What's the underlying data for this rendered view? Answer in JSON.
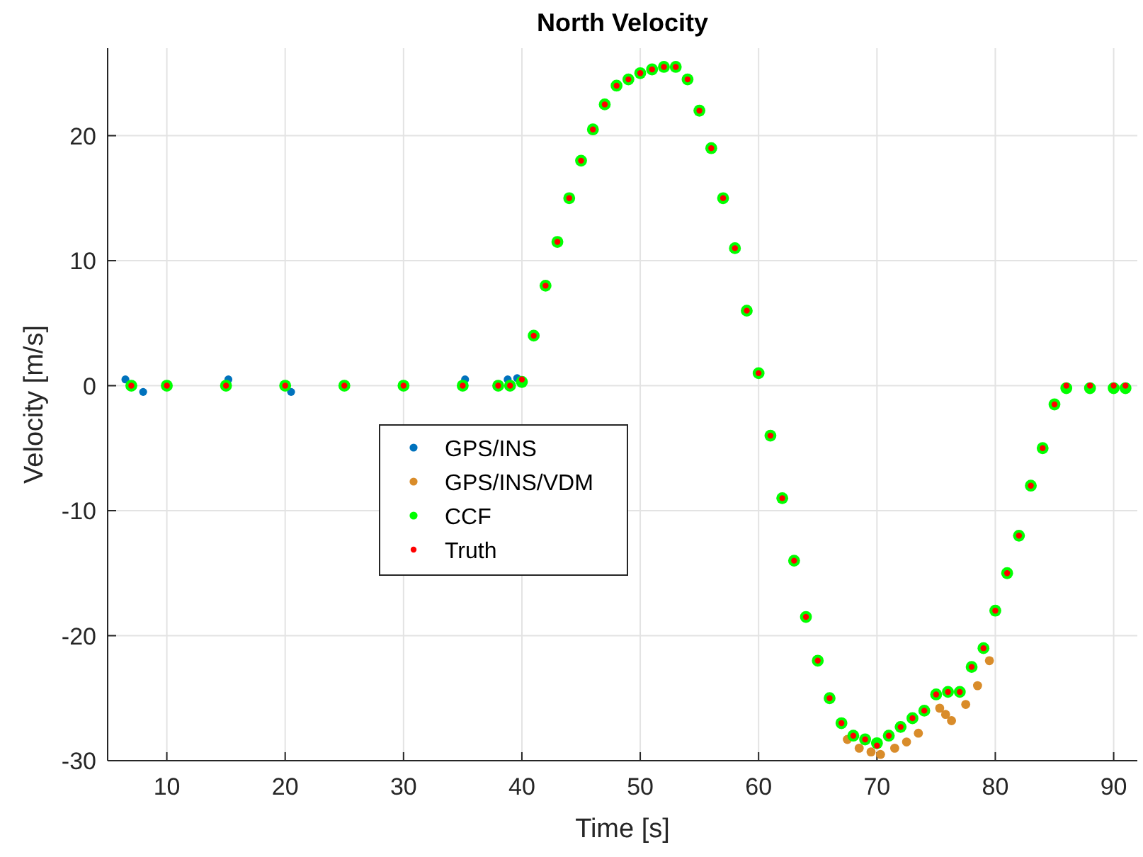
{
  "chart_data": {
    "type": "scatter",
    "title": "North Velocity",
    "xlabel": "Time [s]",
    "ylabel": "Velocity [m/s]",
    "x": [
      7,
      10,
      15,
      20,
      25,
      30,
      35,
      38,
      39,
      40,
      41,
      42,
      43,
      44,
      45,
      46,
      47,
      48,
      49,
      50,
      51,
      52,
      53,
      54,
      55,
      56,
      57,
      58,
      59,
      60,
      61,
      62,
      63,
      64,
      65,
      66,
      67,
      68,
      69,
      70,
      71,
      72,
      73,
      74,
      75,
      76,
      77,
      78,
      79,
      80,
      81,
      82,
      83,
      84,
      85,
      86,
      88,
      90,
      91
    ],
    "series": [
      {
        "name": "GPS/INS",
        "color": "#0072bd",
        "x": [
          6.5,
          8,
          15.2,
          20.5,
          35.2,
          38.8,
          39.6
        ],
        "values": [
          0.5,
          -0.5,
          0.5,
          -0.5,
          0.5,
          0.5,
          0.6
        ]
      },
      {
        "name": "GPS/INS/VDM",
        "color": "#d98c2a",
        "x": [
          67.5,
          68.5,
          69.5,
          70.3,
          71.5,
          72.5,
          73.5,
          75.3,
          75.8,
          76.3,
          77.5,
          78.5,
          79.5
        ],
        "values": [
          -28.3,
          -29,
          -29.3,
          -29.5,
          -29,
          -28.5,
          -27.8,
          -25.8,
          -26.3,
          -26.8,
          -25.5,
          -24,
          -22
        ]
      },
      {
        "name": "CCF",
        "color": "#00ff00",
        "values": [
          0,
          0,
          0,
          0,
          0,
          0,
          0,
          0,
          0,
          0.3,
          4,
          8,
          11.5,
          15,
          18,
          20.5,
          22.5,
          24,
          24.5,
          25,
          25.3,
          25.5,
          25.5,
          24.5,
          22,
          19,
          15,
          11,
          6,
          1,
          -4,
          -9,
          -14,
          -18.5,
          -22,
          -25,
          -27,
          -28,
          -28.3,
          -28.6,
          -28,
          -27.3,
          -26.6,
          -26,
          -24.7,
          -24.5,
          -24.5,
          -22.5,
          -21,
          -18,
          -15,
          -12,
          -8,
          -5,
          -1.5,
          -0.2,
          -0.2,
          -0.2,
          -0.2
        ]
      },
      {
        "name": "Truth",
        "color": "#ff0000",
        "values": [
          0,
          0,
          0,
          0,
          0,
          0,
          0,
          0,
          0,
          0.5,
          4,
          8,
          11.5,
          15,
          18,
          20.5,
          22.5,
          24,
          24.5,
          25,
          25.3,
          25.5,
          25.5,
          24.5,
          22,
          19,
          15,
          11,
          6,
          1,
          -4,
          -9,
          -14,
          -18.5,
          -22,
          -25,
          -27,
          -28,
          -28.3,
          -28.8,
          -28,
          -27.3,
          -26.6,
          -26,
          -24.7,
          -24.5,
          -24.5,
          -22.5,
          -21,
          -18,
          -15,
          -12,
          -8,
          -5,
          -1.5,
          0,
          0,
          0,
          0
        ]
      }
    ],
    "xlim": [
      5,
      92
    ],
    "xticks": [
      10,
      20,
      30,
      40,
      50,
      60,
      70,
      80,
      90
    ],
    "ylim": [
      -30,
      27
    ],
    "yticks": [
      -30,
      -20,
      -10,
      0,
      10,
      20
    ],
    "grid": true,
    "legend": "left",
    "marker": "circle"
  }
}
